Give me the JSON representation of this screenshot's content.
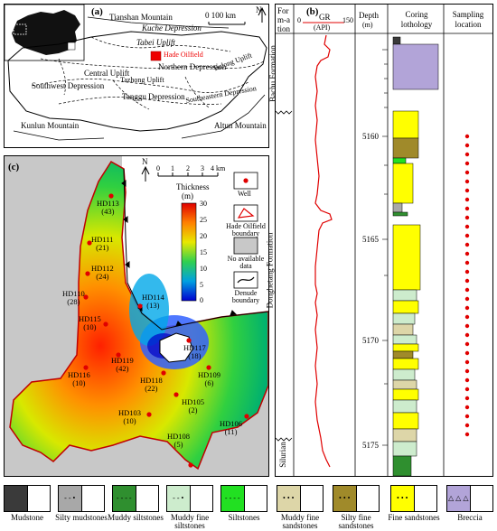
{
  "panel_a": {
    "label": "(a)",
    "scale": "0      100 km",
    "north": "N",
    "units": {
      "tianshan": "Tianshan Mountain",
      "kuche": "Kuche Depression",
      "tabei": "Tabei Uplift",
      "hade": "Hade Oilfield",
      "northern": "Northern Depression",
      "central": "Central Uplift",
      "tazhong": "Tazhong Uplift",
      "tadong": "Tadong Uplift",
      "southwest": "Southwest Depression",
      "tanggu": "Tanggu Depression",
      "southeastern": "Southeastern Depression",
      "kunlun": "Kunlun Mountain",
      "altun": "Altun Mountain"
    }
  },
  "panel_c": {
    "label": "(c)",
    "north": "N",
    "scale_ticks": [
      "0",
      "1",
      "2",
      "3",
      "4 km"
    ],
    "thickness_title": "Thickness",
    "thickness_unit": "(m)",
    "colorbar_ticks": [
      "30",
      "25",
      "20",
      "15",
      "10",
      "5",
      "0"
    ],
    "legend_well": "Well",
    "legend_boundary": "Hade Oilfield boundary",
    "legend_nodata": "No available data",
    "legend_denude": "Denude boundary",
    "wells": [
      {
        "name": "HD113",
        "value": "(43)"
      },
      {
        "name": "HD111",
        "value": "(21)"
      },
      {
        "name": "HD112",
        "value": "(24)"
      },
      {
        "name": "HD110",
        "value": "(28)"
      },
      {
        "name": "HD114",
        "value": "(13)"
      },
      {
        "name": "HD115",
        "value": "(10)"
      },
      {
        "name": "HD117",
        "value": "(18)"
      },
      {
        "name": "HD119",
        "value": "(42)"
      },
      {
        "name": "HD116",
        "value": "(10)"
      },
      {
        "name": "HD118",
        "value": "(22)"
      },
      {
        "name": "HD109",
        "value": "(6)"
      },
      {
        "name": "HD105",
        "value": "(2)"
      },
      {
        "name": "HD103",
        "value": "(10)"
      },
      {
        "name": "HD108",
        "value": "(5)"
      },
      {
        "name": "HD106",
        "value": "(11)"
      }
    ]
  },
  "panel_b": {
    "label": "(b)",
    "headers": {
      "formation": "Form-ation",
      "gr": "GR",
      "gr_unit": "(API)",
      "gr_min": "0",
      "gr_max": "150",
      "depth": "Depth",
      "depth_unit": "(m)",
      "coring": "Coring lothology",
      "sampling": "Sampling location"
    },
    "formations": [
      "Bachu Formation",
      "Donghetang Formation",
      "Silurian"
    ],
    "depths": [
      "5160",
      "5165",
      "5170",
      "5175"
    ],
    "samples": 34
  },
  "legend": [
    {
      "name": "Mudstone",
      "fill": "#3a3a3a",
      "pattern": ""
    },
    {
      "name": "Silty mudstones",
      "fill": "#a8a8a8",
      "pattern": "- - •"
    },
    {
      "name": "Muddy siltstones",
      "fill": "#2f8f2f",
      "pattern": "- - - -"
    },
    {
      "name": "Muddy fine siltstones",
      "fill": "#cdeccd",
      "pattern": "- - •"
    },
    {
      "name": "Siltstones",
      "fill": "#22e022",
      "pattern": "- - - -"
    },
    {
      "name": "Muddy fine sandstones",
      "fill": "#ddd6a8",
      "pattern": "• • •"
    },
    {
      "name": "Silty fine sandstones",
      "fill": "#a08a2a",
      "pattern": "• • •"
    },
    {
      "name": "Fine sandstones",
      "fill": "#ffff00",
      "pattern": "• • •"
    },
    {
      "name": "Breccia",
      "fill": "#b2a4d8",
      "pattern": "△ △ △"
    }
  ]
}
